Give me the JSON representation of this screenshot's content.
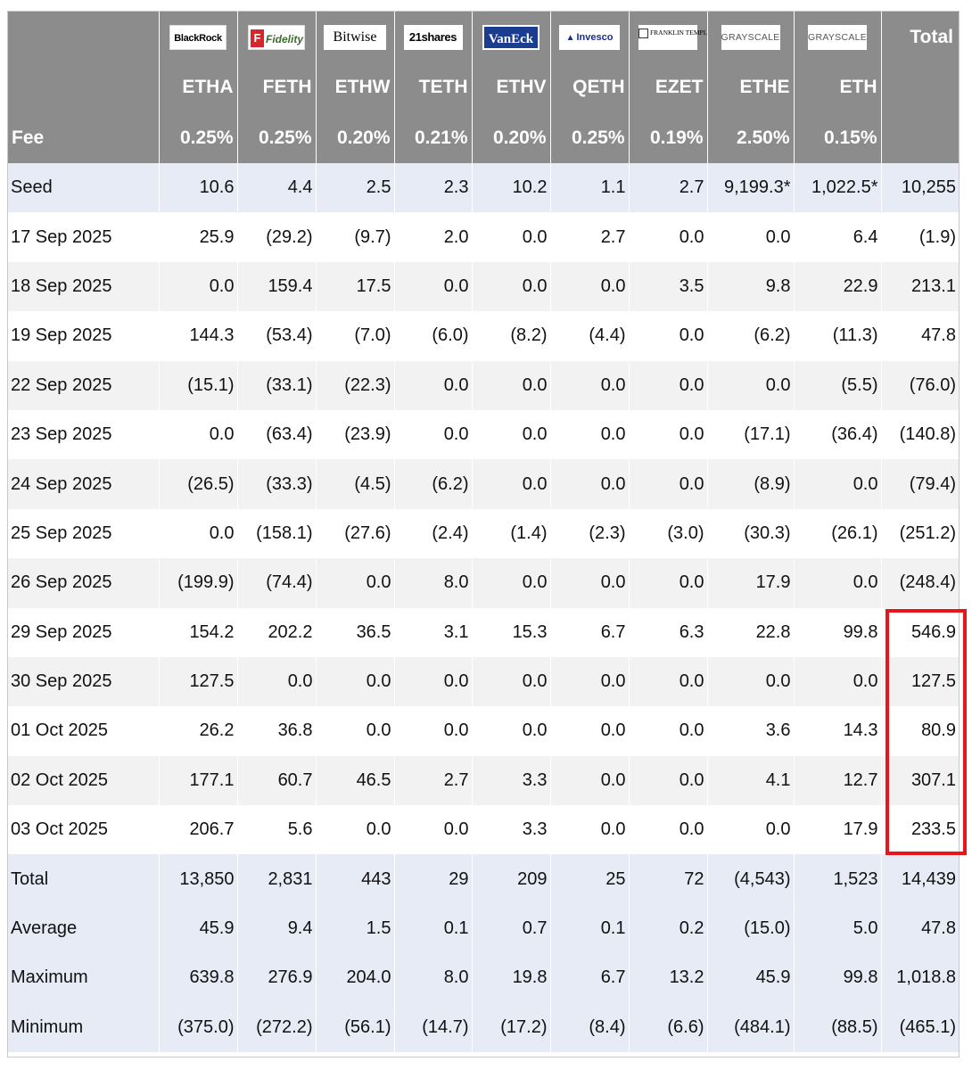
{
  "logos": [
    {
      "name": "blackrock-logo",
      "text": "BlackRock"
    },
    {
      "name": "fidelity-logo",
      "text": "Fidelity"
    },
    {
      "name": "bitwise-logo",
      "text": "Bitwise"
    },
    {
      "name": "21shares-logo",
      "text": "21shares"
    },
    {
      "name": "vaneck-logo",
      "text": "VanEck"
    },
    {
      "name": "invesco-logo",
      "text": "Invesco"
    },
    {
      "name": "franklin-templeton-logo",
      "text": "FRANKLIN TEMPLETON"
    },
    {
      "name": "grayscale-logo",
      "text": "GRAYSCALE"
    },
    {
      "name": "grayscale-mini-logo",
      "text": "GRAYSCALE"
    }
  ],
  "total_header": "Total",
  "tickers": [
    "ETHA",
    "FETH",
    "ETHW",
    "TETH",
    "ETHV",
    "QETH",
    "EZET",
    "ETHE",
    "ETH"
  ],
  "fee_label": "Fee",
  "fees": [
    "0.25%",
    "0.25%",
    "0.20%",
    "0.21%",
    "0.20%",
    "0.25%",
    "0.19%",
    "2.50%",
    "0.15%"
  ],
  "rows": [
    {
      "label": "Seed",
      "values": [
        "10.6",
        "4.4",
        "2.5",
        "2.3",
        "10.2",
        "1.1",
        "2.7",
        "9,199.3*",
        "1,022.5*",
        "10,255"
      ]
    },
    {
      "label": "17 Sep 2025",
      "values": [
        "25.9",
        "(29.2)",
        "(9.7)",
        "2.0",
        "0.0",
        "2.7",
        "0.0",
        "0.0",
        "6.4",
        "(1.9)"
      ]
    },
    {
      "label": "18 Sep 2025",
      "values": [
        "0.0",
        "159.4",
        "17.5",
        "0.0",
        "0.0",
        "0.0",
        "3.5",
        "9.8",
        "22.9",
        "213.1"
      ]
    },
    {
      "label": "19 Sep 2025",
      "values": [
        "144.3",
        "(53.4)",
        "(7.0)",
        "(6.0)",
        "(8.2)",
        "(4.4)",
        "0.0",
        "(6.2)",
        "(11.3)",
        "47.8"
      ]
    },
    {
      "label": "22 Sep 2025",
      "values": [
        "(15.1)",
        "(33.1)",
        "(22.3)",
        "0.0",
        "0.0",
        "0.0",
        "0.0",
        "0.0",
        "(5.5)",
        "(76.0)"
      ]
    },
    {
      "label": "23 Sep 2025",
      "values": [
        "0.0",
        "(63.4)",
        "(23.9)",
        "0.0",
        "0.0",
        "0.0",
        "0.0",
        "(17.1)",
        "(36.4)",
        "(140.8)"
      ]
    },
    {
      "label": "24 Sep 2025",
      "values": [
        "(26.5)",
        "(33.3)",
        "(4.5)",
        "(6.2)",
        "0.0",
        "0.0",
        "0.0",
        "(8.9)",
        "0.0",
        "(79.4)"
      ]
    },
    {
      "label": "25 Sep 2025",
      "values": [
        "0.0",
        "(158.1)",
        "(27.6)",
        "(2.4)",
        "(1.4)",
        "(2.3)",
        "(3.0)",
        "(30.3)",
        "(26.1)",
        "(251.2)"
      ]
    },
    {
      "label": "26 Sep 2025",
      "values": [
        "(199.9)",
        "(74.4)",
        "0.0",
        "8.0",
        "0.0",
        "0.0",
        "0.0",
        "17.9",
        "0.0",
        "(248.4)"
      ]
    },
    {
      "label": "29 Sep 2025",
      "values": [
        "154.2",
        "202.2",
        "36.5",
        "3.1",
        "15.3",
        "6.7",
        "6.3",
        "22.8",
        "99.8",
        "546.9"
      ]
    },
    {
      "label": "30 Sep 2025",
      "values": [
        "127.5",
        "0.0",
        "0.0",
        "0.0",
        "0.0",
        "0.0",
        "0.0",
        "0.0",
        "0.0",
        "127.5"
      ]
    },
    {
      "label": "01 Oct 2025",
      "values": [
        "26.2",
        "36.8",
        "0.0",
        "0.0",
        "0.0",
        "0.0",
        "0.0",
        "3.6",
        "14.3",
        "80.9"
      ]
    },
    {
      "label": "02 Oct 2025",
      "values": [
        "177.1",
        "60.7",
        "46.5",
        "2.7",
        "3.3",
        "0.0",
        "0.0",
        "4.1",
        "12.7",
        "307.1"
      ]
    },
    {
      "label": "03 Oct 2025",
      "values": [
        "206.7",
        "5.6",
        "0.0",
        "0.0",
        "3.3",
        "0.0",
        "0.0",
        "0.0",
        "17.9",
        "233.5"
      ]
    },
    {
      "label": "Total",
      "values": [
        "13,850",
        "2,831",
        "443",
        "29",
        "209",
        "25",
        "72",
        "(4,543)",
        "1,523",
        "14,439"
      ]
    },
    {
      "label": "Average",
      "values": [
        "45.9",
        "9.4",
        "1.5",
        "0.1",
        "0.7",
        "0.1",
        "0.2",
        "(15.0)",
        "5.0",
        "47.8"
      ]
    },
    {
      "label": "Maximum",
      "values": [
        "639.8",
        "276.9",
        "204.0",
        "8.0",
        "19.8",
        "6.7",
        "13.2",
        "45.9",
        "99.8",
        "1,018.8"
      ]
    },
    {
      "label": "Minimum",
      "values": [
        "(375.0)",
        "(272.2)",
        "(56.1)",
        "(14.7)",
        "(17.2)",
        "(8.4)",
        "(6.6)",
        "(484.1)",
        "(88.5)",
        "(465.1)"
      ]
    }
  ],
  "colors": {
    "header_bg": "#8c8c8c",
    "summary_row_bg": "#e7ebf6",
    "stripe_bg": "#f2f2f2",
    "negative_text": "#e8161a",
    "highlight_box": "#e8161a"
  }
}
